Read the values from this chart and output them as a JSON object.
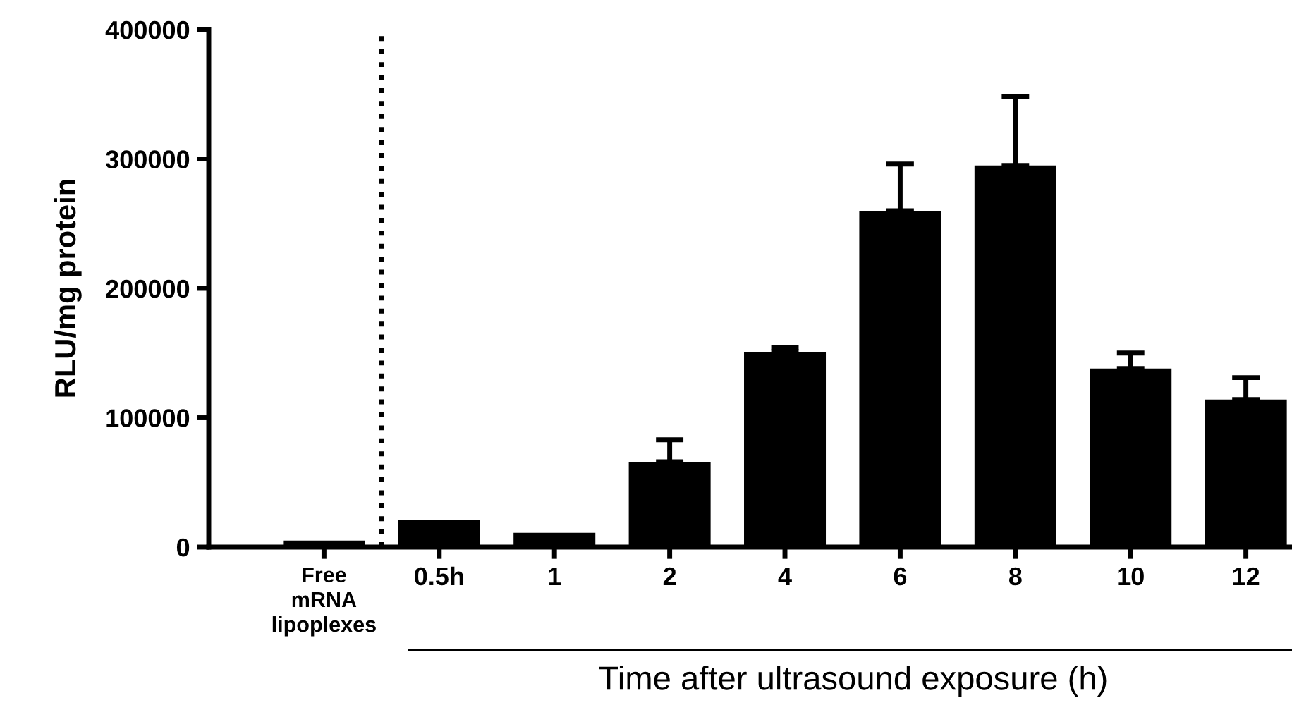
{
  "chart_data": {
    "type": "bar",
    "xlabel": "Time after ultrasound exposure (h)",
    "ylabel": "RLU/mg protein",
    "categories": [
      "Free\nmRNA\nlipoplexes",
      "0.5h",
      "1",
      "2",
      "4",
      "6",
      "8",
      "10",
      "12"
    ],
    "values": [
      5000,
      21000,
      11000,
      66000,
      151000,
      260000,
      295000,
      138000,
      114000
    ],
    "errors": [
      null,
      null,
      null,
      17000,
      3000,
      36000,
      53000,
      12000,
      17000
    ],
    "color": "#000000",
    "ylim": [
      0,
      400000
    ],
    "yticks": [
      0,
      100000,
      200000,
      300000,
      400000
    ],
    "grid": false,
    "legend": false
  }
}
